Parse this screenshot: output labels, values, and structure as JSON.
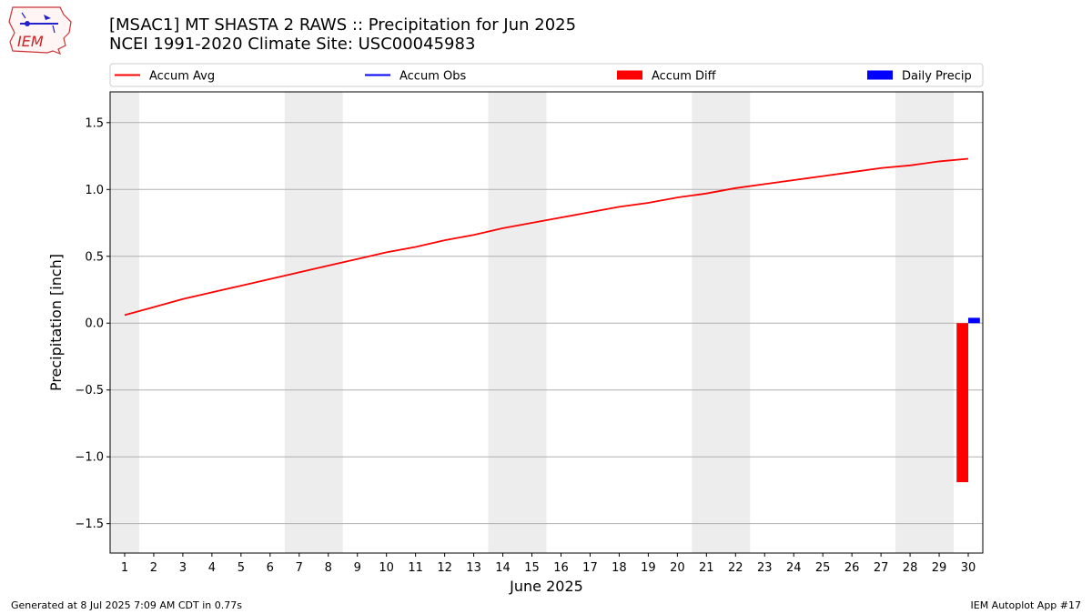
{
  "page": {
    "title_line1": "[MSAC1] MT SHASTA 2 RAWS :: Precipitation for Jun 2025",
    "title_line2": "NCEI 1991-2020 Climate Site: USC00045983",
    "footer_left": "Generated at 8 Jul 2025 7:09 AM CDT in 0.77s",
    "footer_right": "IEM Autoplot App #17",
    "logo_text": "IEM"
  },
  "chart_data": {
    "type": "line",
    "xlabel": "June 2025",
    "ylabel": "Precipitation [inch]",
    "ylim": [
      -1.72,
      1.73
    ],
    "yticks": [
      1.5,
      1.0,
      0.5,
      0.0,
      -0.5,
      -1.0,
      -1.5
    ],
    "ytick_labels": [
      "1.5",
      "1.0",
      "0.5",
      "0.0",
      "−0.5",
      "−1.0",
      "−1.5"
    ],
    "xlim": [
      0.5,
      30.5
    ],
    "days": [
      1,
      2,
      3,
      4,
      5,
      6,
      7,
      8,
      9,
      10,
      11,
      12,
      13,
      14,
      15,
      16,
      17,
      18,
      19,
      20,
      21,
      22,
      23,
      24,
      25,
      26,
      27,
      28,
      29,
      30
    ],
    "weekend_spans": [
      [
        0.5,
        1.5
      ],
      [
        6.5,
        8.5
      ],
      [
        13.5,
        15.5
      ],
      [
        20.5,
        22.5
      ],
      [
        27.5,
        29.5
      ]
    ],
    "grid": "horizontal",
    "legend_position": "top",
    "legend": [
      {
        "label": "Accum Avg",
        "kind": "line",
        "color": "#ff0000"
      },
      {
        "label": "Accum Obs",
        "kind": "line",
        "color": "#0000ff"
      },
      {
        "label": "Accum Diff",
        "kind": "bar",
        "color": "#ff0000"
      },
      {
        "label": "Daily Precip",
        "kind": "bar",
        "color": "#0000ff"
      }
    ],
    "series": [
      {
        "name": "Accum Avg",
        "color": "#ff0000",
        "x": [
          1,
          2,
          3,
          4,
          5,
          6,
          7,
          8,
          9,
          10,
          11,
          12,
          13,
          14,
          15,
          16,
          17,
          18,
          19,
          20,
          21,
          22,
          23,
          24,
          25,
          26,
          27,
          28,
          29,
          30
        ],
        "values": [
          0.06,
          0.12,
          0.18,
          0.23,
          0.28,
          0.33,
          0.38,
          0.43,
          0.48,
          0.53,
          0.57,
          0.62,
          0.66,
          0.71,
          0.75,
          0.79,
          0.83,
          0.87,
          0.9,
          0.94,
          0.97,
          1.01,
          1.04,
          1.07,
          1.1,
          1.13,
          1.16,
          1.18,
          1.21,
          1.23
        ]
      }
    ],
    "bars": [
      {
        "name": "Accum Diff",
        "color": "#ff0000",
        "x": [
          30
        ],
        "values": [
          -1.19
        ]
      },
      {
        "name": "Daily Precip",
        "color": "#0000ff",
        "x": [
          30
        ],
        "values": [
          0.04
        ]
      }
    ]
  }
}
